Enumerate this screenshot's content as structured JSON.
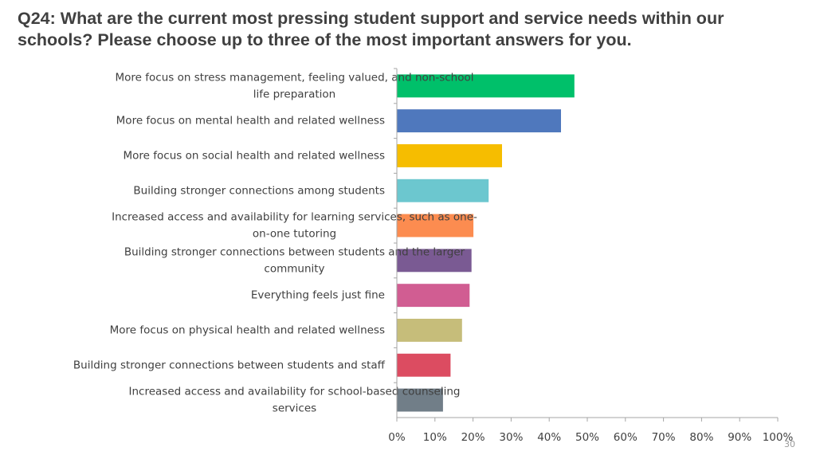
{
  "slide": {
    "title": "Q24: What are the current most pressing student support and service needs within our schools? Please choose up to three of the most important answers for you.",
    "page_number": "30"
  },
  "chart_data": {
    "type": "bar",
    "orientation": "horizontal",
    "title": "",
    "xlabel": "",
    "ylabel": "",
    "xlim": [
      0,
      100
    ],
    "x_ticks": [
      "0%",
      "10%",
      "20%",
      "30%",
      "40%",
      "50%",
      "60%",
      "70%",
      "80%",
      "90%",
      "100%"
    ],
    "grid": false,
    "legend": "none",
    "categories": [
      "More focus on stress management, feeling valued, and non-school life preparation",
      "More focus on mental health and related wellness",
      "More focus on social health and related wellness",
      "Building stronger connections among students",
      "Increased access and availability for learning services, such as one-on-one tutoring",
      "Building stronger connections between students and the larger community",
      "Everything feels just fine",
      "More focus on physical health and related wellness",
      "Building stronger connections between students and staff",
      "Increased access and availability for school-based counseling services"
    ],
    "category_lines": [
      [
        "More focus on stress management, feeling valued, and non-school",
        "life preparation"
      ],
      [
        "More focus on mental health and related wellness"
      ],
      [
        "More focus on social health and related wellness"
      ],
      [
        "Building stronger connections among students"
      ],
      [
        "Increased access and availability for learning services, such as one-",
        "on-one tutoring"
      ],
      [
        "Building stronger connections between students and the larger",
        "community"
      ],
      [
        "Everything feels just fine"
      ],
      [
        "More focus on physical health and related wellness"
      ],
      [
        "Building stronger connections between students and staff"
      ],
      [
        "Increased access and availability for school-based counseling",
        "services"
      ]
    ],
    "values": [
      46.5,
      43,
      27.5,
      24,
      20,
      19.5,
      19,
      17,
      14,
      12
    ],
    "colors": [
      "#00c06a",
      "#4f78bd",
      "#f6bd00",
      "#6cc7cf",
      "#fc8c50",
      "#7a5a93",
      "#d15d92",
      "#c6bd7a",
      "#dc4c61",
      "#717e88"
    ]
  }
}
